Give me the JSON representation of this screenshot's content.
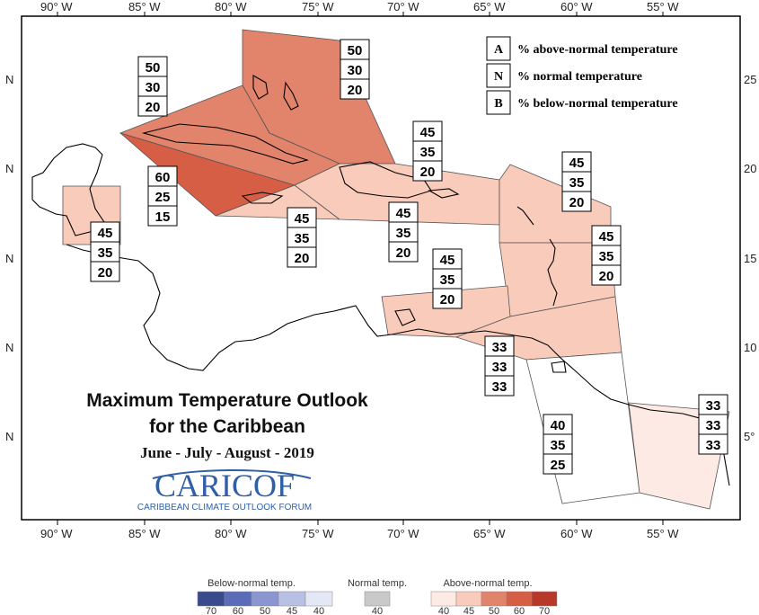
{
  "title": {
    "line1": "Maximum Temperature Outlook",
    "line2": "for the Caribbean",
    "period": "June - July - August - 2019"
  },
  "logo": {
    "name": "CARICOF",
    "subtitle": "CARIBBEAN CLIMATE OUTLOOK FORUM"
  },
  "axes": {
    "x_ticks": [
      "90° W",
      "85° W",
      "80° W",
      "75° W",
      "70° W",
      "65° W",
      "60° W",
      "55° W"
    ],
    "y_ticks_left": [
      "N",
      "N",
      "N",
      "N",
      "N"
    ],
    "y_ticks_right": [
      "25",
      "20",
      "15",
      "10",
      "5°"
    ]
  },
  "key": [
    {
      "letter": "A",
      "text": "% above-normal temperature"
    },
    {
      "letter": "N",
      "text": "% normal temperature"
    },
    {
      "letter": "B",
      "text": "% below-normal temperature"
    }
  ],
  "regions": [
    {
      "id": "bahamas",
      "above": "50",
      "normal": "30",
      "below": "20",
      "color": "#e2836c"
    },
    {
      "id": "cuba",
      "above": "50",
      "normal": "30",
      "below": "20",
      "color": "#e2836c"
    },
    {
      "id": "cayman-jamaica-west",
      "above": "60",
      "normal": "25",
      "below": "15",
      "color": "#d65e45"
    },
    {
      "id": "belize",
      "above": "45",
      "normal": "35",
      "below": "20",
      "color": "#f9cbbb"
    },
    {
      "id": "jamaica",
      "above": "45",
      "normal": "35",
      "below": "20",
      "color": "#f9cbbb"
    },
    {
      "id": "hispaniola",
      "above": "45",
      "normal": "35",
      "below": "20",
      "color": "#f9cbbb"
    },
    {
      "id": "turks-caicos",
      "above": "45",
      "normal": "35",
      "below": "20",
      "color": "#f9cbbb"
    },
    {
      "id": "leeward-islands",
      "above": "45",
      "normal": "35",
      "below": "20",
      "color": "#f9cbbb"
    },
    {
      "id": "windward-islands",
      "above": "45",
      "normal": "35",
      "below": "20",
      "color": "#f9cbbb"
    },
    {
      "id": "abc-islands",
      "above": "45",
      "normal": "35",
      "below": "20",
      "color": "#f9cbbb"
    },
    {
      "id": "trinidad",
      "above": "33",
      "normal": "33",
      "below": "33",
      "color": "#ffffff"
    },
    {
      "id": "guyana",
      "above": "40",
      "normal": "35",
      "below": "25",
      "color": "#fdeae4"
    },
    {
      "id": "suriname-fg",
      "above": "33",
      "normal": "33",
      "below": "33",
      "color": "#ffffff"
    }
  ],
  "colorbar": {
    "below": {
      "title": "Below-normal temp.",
      "labels": [
        "70",
        "60",
        "50",
        "45",
        "40"
      ],
      "colors": [
        "#3a4a8c",
        "#5a6bb8",
        "#8b96d0",
        "#b9c0e6",
        "#e3e7f6"
      ]
    },
    "normal": {
      "title": "Normal temp.",
      "labels": [
        "40"
      ],
      "colors": [
        "#c9c9c9"
      ]
    },
    "above": {
      "title": "Above-normal temp.",
      "labels": [
        "40",
        "45",
        "50",
        "60",
        "70"
      ],
      "colors": [
        "#fdeae4",
        "#f9cbbb",
        "#e2836c",
        "#d65e45",
        "#b8392a"
      ]
    }
  }
}
